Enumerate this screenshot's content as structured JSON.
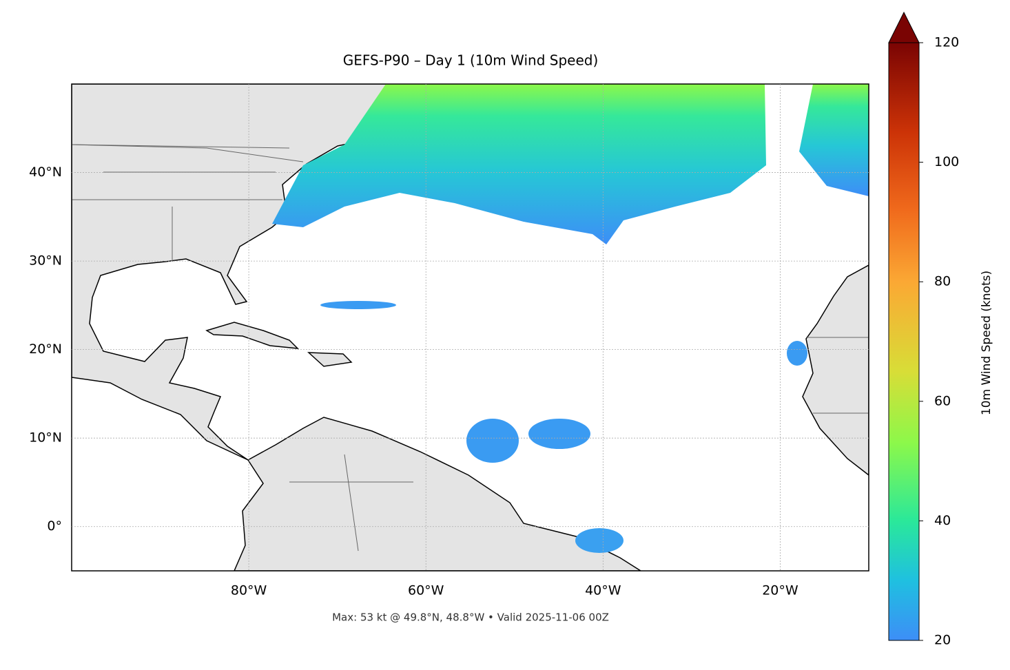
{
  "chart_data": {
    "type": "map",
    "title": "GEFS-P90 – Day 1 (10m Wind Speed)",
    "annotation": "Max: 53 kt @ 49.8°N, 48.8°W • Valid 2025-11-06 00Z",
    "xlim": [
      -100,
      -10
    ],
    "xticks": [
      {
        "value": -80,
        "label": "80°W"
      },
      {
        "value": -60,
        "label": "60°W"
      },
      {
        "value": -40,
        "label": "40°W"
      },
      {
        "value": -20,
        "label": "20°W"
      }
    ],
    "ylim": [
      -5,
      50
    ],
    "yticks": [
      {
        "value": 0,
        "label": "0°"
      },
      {
        "value": 10,
        "label": "10°N"
      },
      {
        "value": 20,
        "label": "20°N"
      },
      {
        "value": 30,
        "label": "30°N"
      },
      {
        "value": 40,
        "label": "40°N"
      }
    ],
    "grid": true,
    "colorbar": {
      "label": "10m Wind Speed (knots)",
      "lim": [
        20,
        120
      ],
      "ticks": [
        20,
        40,
        60,
        80,
        100,
        120
      ],
      "extend": "max"
    }
  }
}
